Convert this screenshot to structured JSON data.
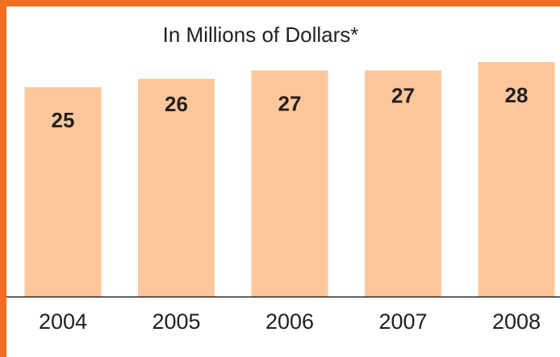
{
  "chart_data": {
    "type": "bar",
    "title": "In Millions of Dollars*",
    "categories": [
      "2004",
      "2005",
      "2006",
      "2007",
      "2008"
    ],
    "values": [
      25,
      26,
      27,
      27,
      28
    ],
    "xlabel": "",
    "ylabel": "",
    "grid": false,
    "legend": "none"
  },
  "colors": {
    "frame": "#f26f21",
    "bar": "#fdc79b",
    "axis": "#231f20",
    "text": "#231f20",
    "background": "#ffffff"
  }
}
